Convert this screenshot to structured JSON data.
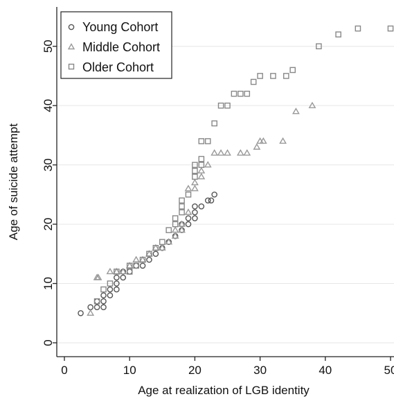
{
  "chart_data": {
    "type": "scatter",
    "title": "",
    "xlabel": "Age at realization of LGB identity",
    "ylabel": "Age of suicide attempt",
    "xlim": [
      0,
      50
    ],
    "ylim": [
      0,
      55
    ],
    "xticks": [
      "0",
      "10",
      "20",
      "30",
      "40",
      "50"
    ],
    "yticks": [
      "0",
      "10",
      "20",
      "30",
      "40",
      "50"
    ],
    "grid": "horizontal",
    "legend_position": "top-left",
    "series": [
      {
        "name": "Young Cohort",
        "marker": "circle",
        "color": "#555555",
        "points": [
          [
            2.5,
            5
          ],
          [
            4,
            6
          ],
          [
            5,
            6
          ],
          [
            5,
            7
          ],
          [
            6,
            6
          ],
          [
            6,
            7
          ],
          [
            6,
            8
          ],
          [
            7,
            8
          ],
          [
            7,
            9
          ],
          [
            8,
            9
          ],
          [
            8,
            10
          ],
          [
            8,
            11
          ],
          [
            9,
            11
          ],
          [
            9,
            12
          ],
          [
            10,
            12
          ],
          [
            11,
            13
          ],
          [
            12,
            13
          ],
          [
            13,
            14
          ],
          [
            14,
            15
          ],
          [
            15,
            16
          ],
          [
            16,
            17
          ],
          [
            17,
            18
          ],
          [
            18,
            19
          ],
          [
            18,
            20
          ],
          [
            19,
            20
          ],
          [
            19,
            21
          ],
          [
            20,
            21
          ],
          [
            20,
            22
          ],
          [
            20,
            23
          ],
          [
            21,
            23
          ],
          [
            22,
            24
          ],
          [
            22.5,
            24
          ],
          [
            23,
            25
          ]
        ]
      },
      {
        "name": "Middle Cohort",
        "marker": "triangle",
        "color": "#999999",
        "points": [
          [
            4,
            5
          ],
          [
            5,
            11
          ],
          [
            5.2,
            11
          ],
          [
            7,
            12
          ],
          [
            8,
            12
          ],
          [
            9,
            12
          ],
          [
            10,
            13
          ],
          [
            11,
            14
          ],
          [
            12,
            14
          ],
          [
            13,
            15
          ],
          [
            14,
            16
          ],
          [
            15,
            16
          ],
          [
            16,
            17
          ],
          [
            17,
            18
          ],
          [
            17,
            19
          ],
          [
            18,
            19
          ],
          [
            18,
            20
          ],
          [
            19,
            22
          ],
          [
            19,
            26
          ],
          [
            20,
            26
          ],
          [
            20,
            27
          ],
          [
            21,
            28
          ],
          [
            21,
            29
          ],
          [
            22,
            30
          ],
          [
            23,
            32
          ],
          [
            24,
            32
          ],
          [
            25,
            32
          ],
          [
            27,
            32
          ],
          [
            28,
            32
          ],
          [
            29.5,
            33
          ],
          [
            30,
            34
          ],
          [
            30.5,
            34
          ],
          [
            33.5,
            34
          ],
          [
            35.5,
            39
          ],
          [
            38,
            40
          ]
        ]
      },
      {
        "name": "Older Cohort",
        "marker": "square",
        "color": "#888888",
        "points": [
          [
            5,
            7
          ],
          [
            6,
            9
          ],
          [
            7,
            10
          ],
          [
            8,
            12
          ],
          [
            10,
            12
          ],
          [
            10,
            13
          ],
          [
            11,
            13
          ],
          [
            12,
            14
          ],
          [
            13,
            15
          ],
          [
            14,
            16
          ],
          [
            15,
            17
          ],
          [
            16,
            19
          ],
          [
            17,
            20
          ],
          [
            17,
            21
          ],
          [
            18,
            22
          ],
          [
            18,
            23
          ],
          [
            18,
            24
          ],
          [
            19,
            25
          ],
          [
            20,
            28
          ],
          [
            20,
            29
          ],
          [
            20,
            30
          ],
          [
            21,
            30
          ],
          [
            21,
            31
          ],
          [
            21,
            34
          ],
          [
            22,
            34
          ],
          [
            23,
            37
          ],
          [
            24,
            40
          ],
          [
            25,
            40
          ],
          [
            26,
            42
          ],
          [
            27,
            42
          ],
          [
            28,
            42
          ],
          [
            29,
            44
          ],
          [
            30,
            45
          ],
          [
            32,
            45
          ],
          [
            34,
            45
          ],
          [
            35,
            46
          ],
          [
            39,
            50
          ],
          [
            42,
            52
          ],
          [
            45,
            53
          ],
          [
            50,
            53
          ]
        ]
      }
    ]
  }
}
